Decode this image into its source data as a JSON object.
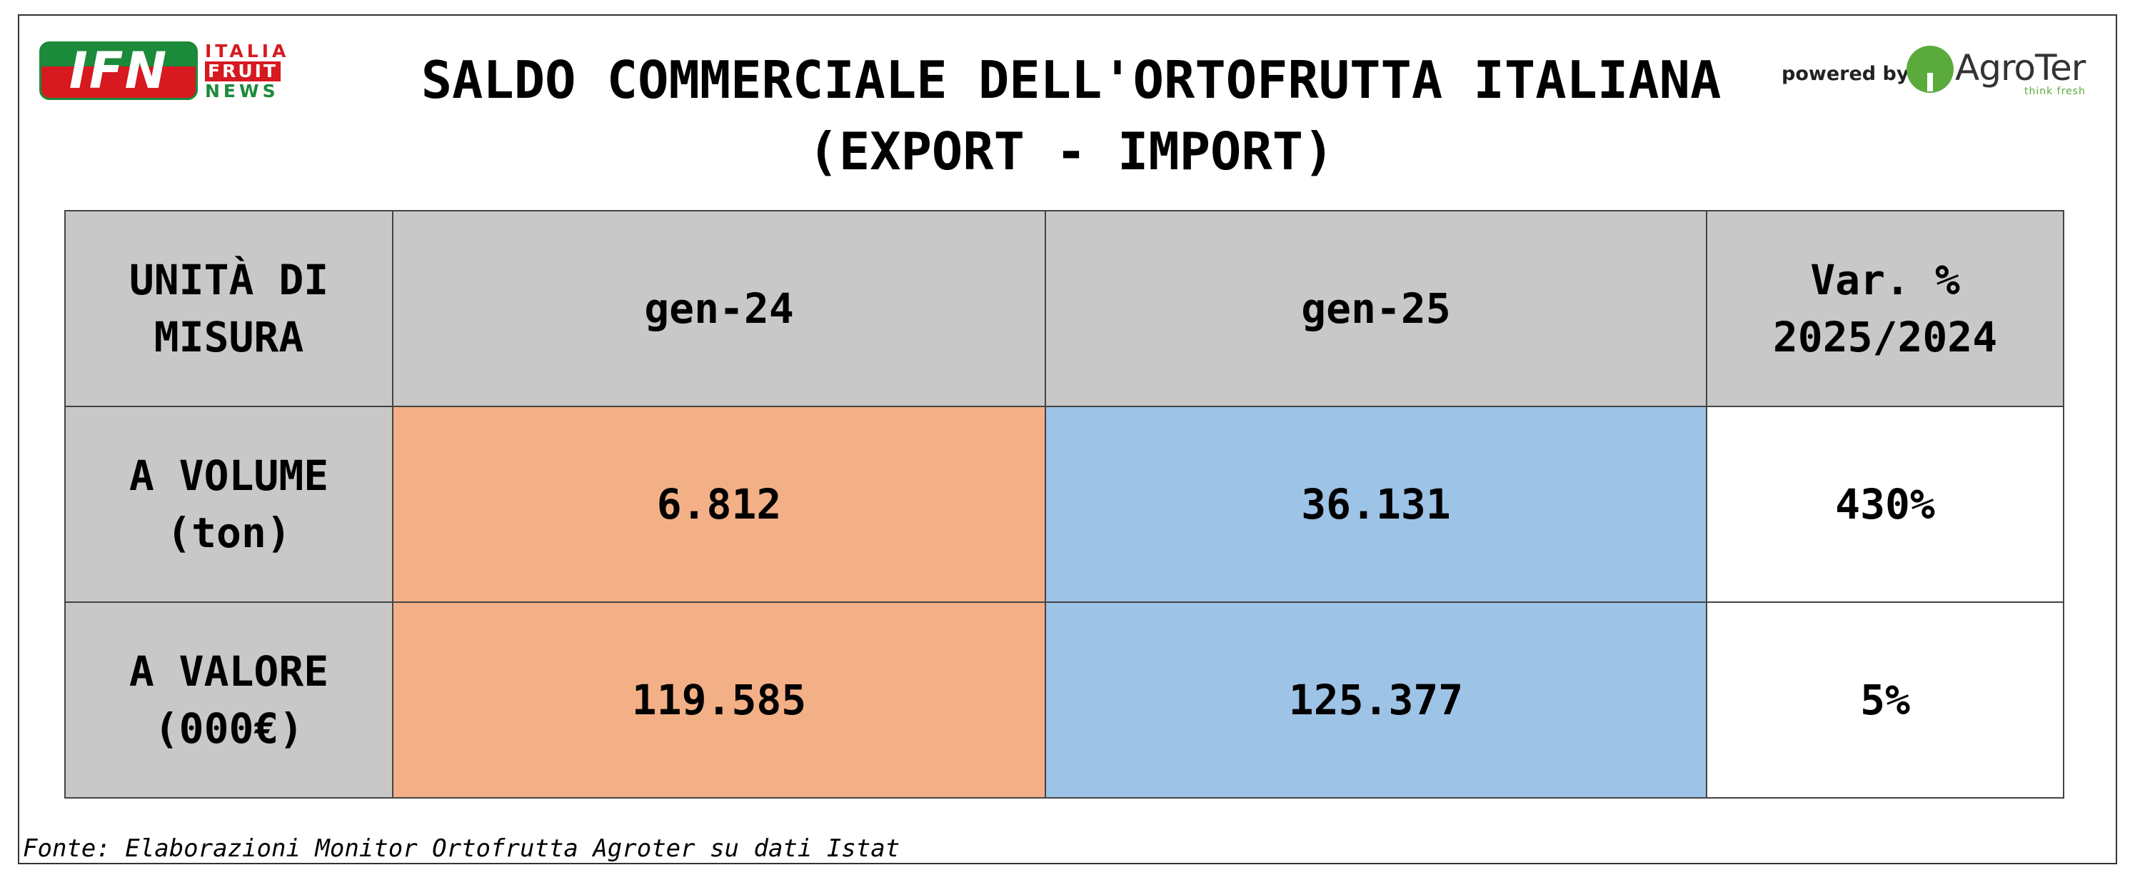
{
  "brand": {
    "ifn_letters": "IFN",
    "ifn_words": [
      "ITALIA",
      "FRUIT",
      "NEWS"
    ],
    "powered_by": "powered by",
    "agroter_name": "AgroTer",
    "agroter_tagline": "think fresh"
  },
  "title": {
    "line1": "SALDO COMMERCIALE DELL'ORTOFRUTTA ITALIANA",
    "line2": "(EXPORT - IMPORT)"
  },
  "table": {
    "headers": [
      "UNITÀ DI MISURA",
      "gen-24",
      "gen-25",
      "Var. % 2025/2024"
    ],
    "rows": [
      {
        "label": "A VOLUME (ton)",
        "gen24": "6.812",
        "gen25": "36.131",
        "var": "430%"
      },
      {
        "label": "A VALORE (000€)",
        "gen24": "119.585",
        "gen25": "125.377",
        "var": "5%"
      }
    ]
  },
  "colors": {
    "header_bg": "#c8c8c8",
    "gen24_bg": "#f3b087",
    "gen25_bg": "#9dc3e6",
    "ifn_red": "#d71920",
    "ifn_green": "#1b8a3a",
    "agroter_green": "#5aab3c"
  },
  "source": "Fonte: Elaborazioni Monitor Ortofrutta Agroter su dati Istat"
}
